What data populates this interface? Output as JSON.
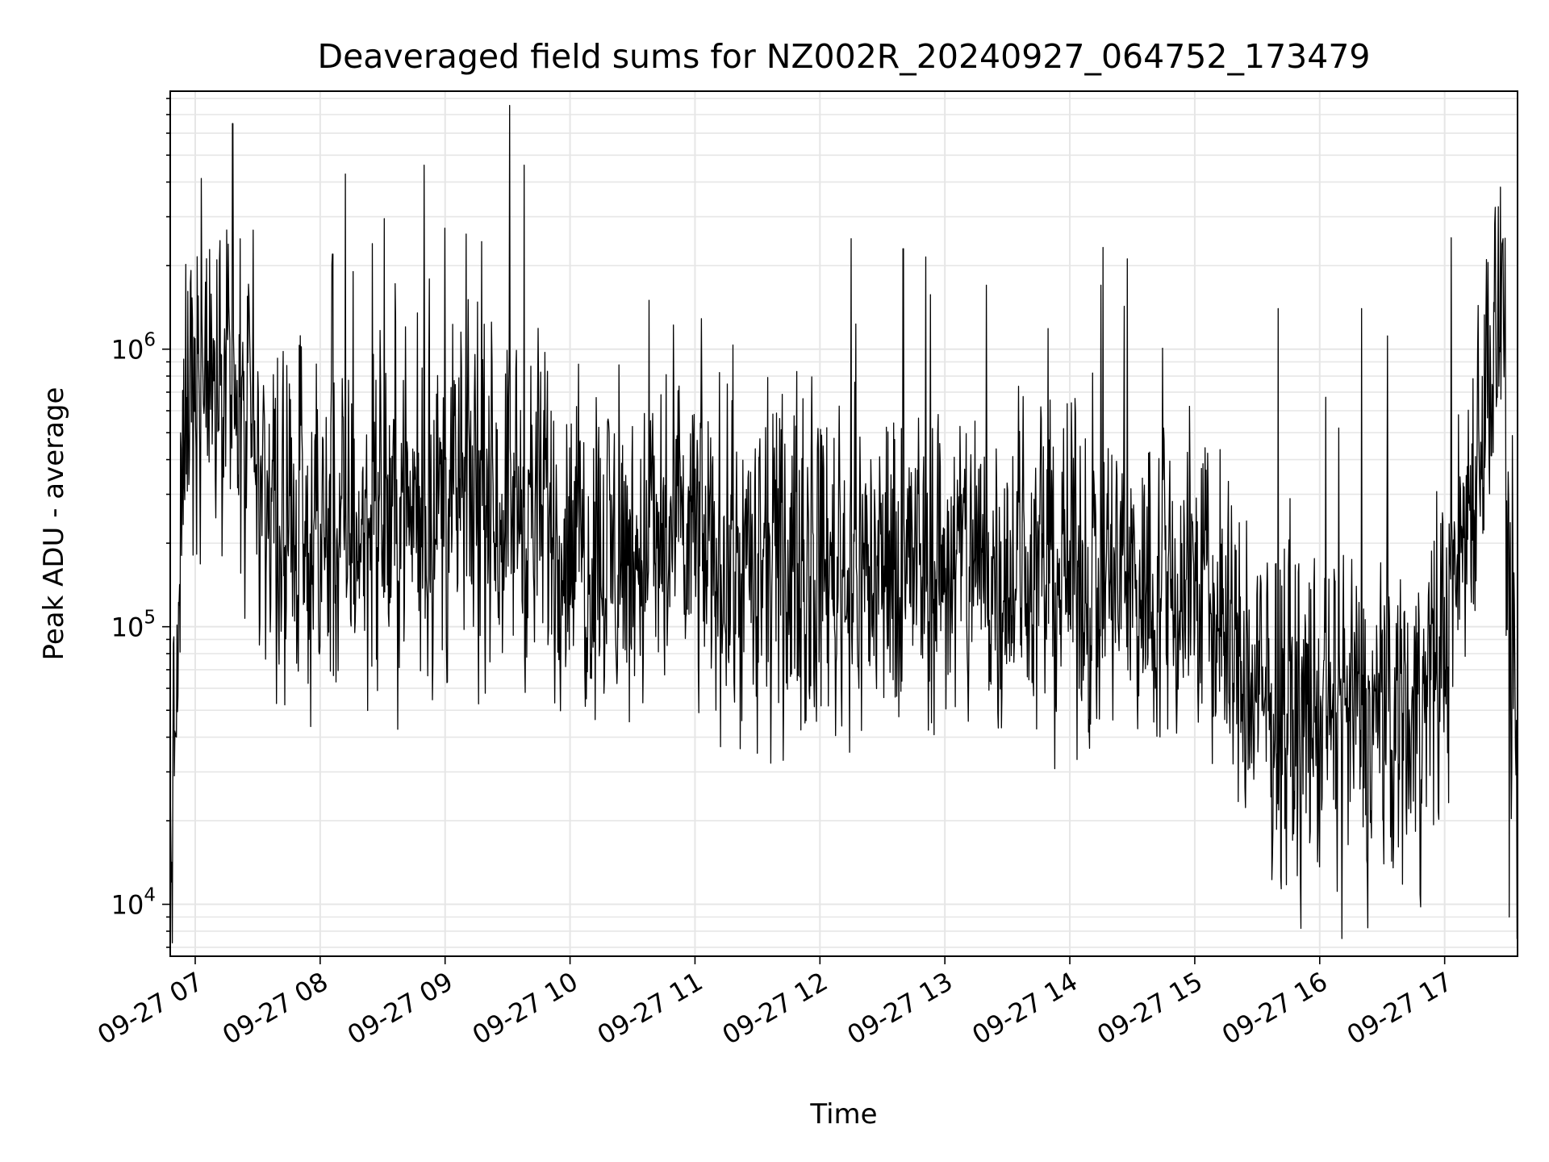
{
  "chart_data": {
    "type": "line",
    "title": "Deaveraged field sums for NZ002R_20240927_064752_173479",
    "xlabel": "Time",
    "ylabel": "Peak ADU - average",
    "y_scale": "log",
    "xlim": [
      "2024-09-27 06:48",
      "2024-09-27 17:35"
    ],
    "ylim": [
      6500,
      8500000
    ],
    "grid": true,
    "grid_color": "#e6e6e6",
    "line_color": "#000000",
    "x_ticks": [
      "09-27 07",
      "09-27 08",
      "09-27 09",
      "09-27 10",
      "09-27 11",
      "09-27 12",
      "09-27 13",
      "09-27 14",
      "09-27 15",
      "09-27 16",
      "09-27 17"
    ],
    "y_ticks": [
      {
        "value": 10000,
        "base": "10",
        "exp": "4"
      },
      {
        "value": 100000,
        "base": "10",
        "exp": "5"
      },
      {
        "value": 1000000,
        "base": "10",
        "exp": "6"
      }
    ],
    "series": [
      {
        "name": "",
        "x": [
          "2024-09-27 06:48",
          "2024-09-27 06:50",
          "2024-09-27 06:52",
          "2024-09-27 06:55",
          "2024-09-27 06:58",
          "2024-09-27 07:05",
          "2024-09-27 07:15",
          "2024-09-27 07:20",
          "2024-09-27 07:30",
          "2024-09-27 07:45",
          "2024-09-27 08:00",
          "2024-09-27 08:30",
          "2024-09-27 09:00",
          "2024-09-27 09:30",
          "2024-09-27 10:00",
          "2024-09-27 10:30",
          "2024-09-27 11:00",
          "2024-09-27 11:30",
          "2024-09-27 12:00",
          "2024-09-27 12:30",
          "2024-09-27 13:00",
          "2024-09-27 13:30",
          "2024-09-27 14:00",
          "2024-09-27 14:30",
          "2024-09-27 15:00",
          "2024-09-27 15:30",
          "2024-09-27 16:00",
          "2024-09-27 16:30",
          "2024-09-27 16:55",
          "2024-09-27 17:10",
          "2024-09-27 17:20",
          "2024-09-27 17:28",
          "2024-09-27 17:32",
          "2024-09-27 17:35"
        ],
        "y": [
          15000,
          35000,
          80000,
          600000,
          900000,
          700000,
          1000000,
          500000,
          300000,
          220000,
          200000,
          250000,
          280000,
          300000,
          200000,
          180000,
          200000,
          150000,
          170000,
          160000,
          170000,
          170000,
          160000,
          140000,
          150000,
          50000,
          45000,
          45000,
          60000,
          250000,
          800000,
          1200000,
          30000,
          20000
        ]
      }
    ],
    "spikes": [
      {
        "x": "2024-09-27 07:18",
        "y": 6500000
      },
      {
        "x": "2024-09-27 08:06",
        "y": 2200000
      },
      {
        "x": "2024-09-27 08:25",
        "y": 2400000
      },
      {
        "x": "2024-09-27 08:50",
        "y": 4600000
      },
      {
        "x": "2024-09-27 09:10",
        "y": 2600000
      },
      {
        "x": "2024-09-27 09:38",
        "y": 4600000
      },
      {
        "x": "2024-09-27 10:38",
        "y": 1500000
      },
      {
        "x": "2024-09-27 12:15",
        "y": 2500000
      },
      {
        "x": "2024-09-27 12:40",
        "y": 2300000
      },
      {
        "x": "2024-09-27 13:20",
        "y": 1700000
      },
      {
        "x": "2024-09-27 14:15",
        "y": 1700000
      },
      {
        "x": "2024-09-27 15:40",
        "y": 1400000
      },
      {
        "x": "2024-09-27 16:20",
        "y": 1400000
      },
      {
        "x": "2024-09-27 17:28",
        "y": 2500000
      },
      {
        "x": "2024-09-27 11:30",
        "y": 35000
      },
      {
        "x": "2024-09-27 17:31",
        "y": 9000
      }
    ]
  }
}
